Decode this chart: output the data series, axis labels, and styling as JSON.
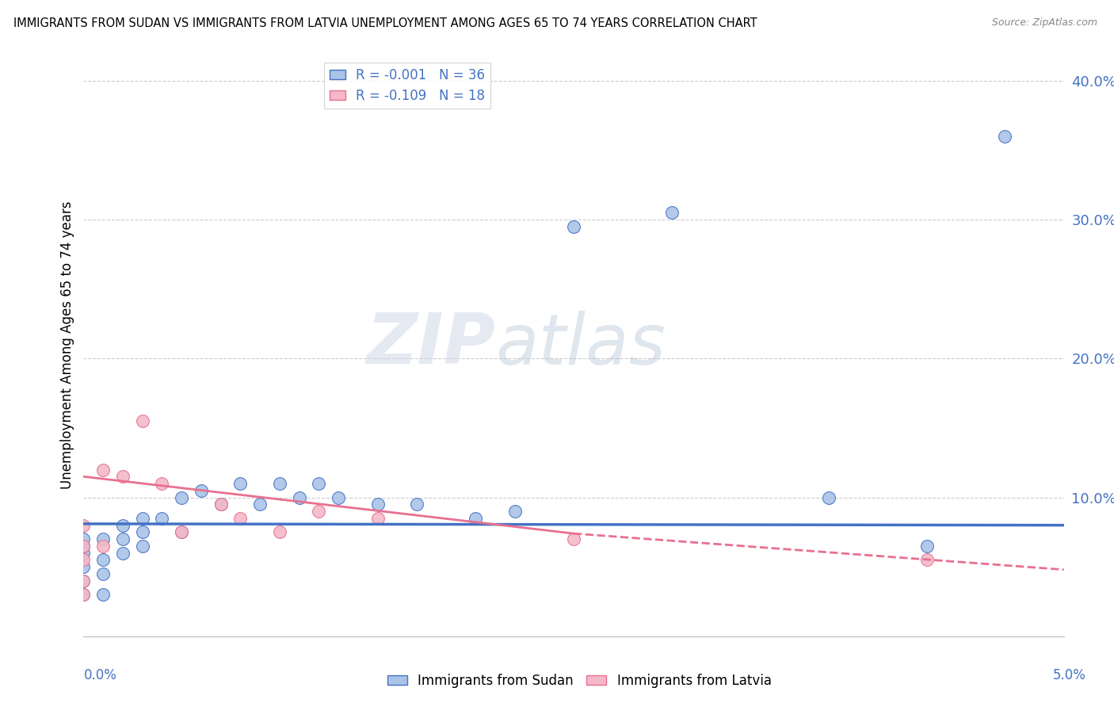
{
  "title": "IMMIGRANTS FROM SUDAN VS IMMIGRANTS FROM LATVIA UNEMPLOYMENT AMONG AGES 65 TO 74 YEARS CORRELATION CHART",
  "source": "Source: ZipAtlas.com",
  "ylabel": "Unemployment Among Ages 65 to 74 years",
  "xlim": [
    0.0,
    0.05
  ],
  "ylim": [
    0.0,
    0.42
  ],
  "ytick_vals": [
    0.0,
    0.1,
    0.2,
    0.3,
    0.4
  ],
  "ytick_labels": [
    "",
    "10.0%",
    "20.0%",
    "30.0%",
    "40.0%"
  ],
  "sudan_color": "#aac4e8",
  "latvia_color": "#f4b8c8",
  "sudan_line_color": "#4472c4",
  "latvia_line_color": "#e87090",
  "watermark_zip": "ZIP",
  "watermark_atlas": "atlas",
  "sudan_x": [
    0.0,
    0.0,
    0.0,
    0.0,
    0.0,
    0.0,
    0.001,
    0.001,
    0.001,
    0.001,
    0.002,
    0.002,
    0.002,
    0.003,
    0.003,
    0.003,
    0.004,
    0.005,
    0.005,
    0.006,
    0.007,
    0.008,
    0.009,
    0.01,
    0.011,
    0.012,
    0.013,
    0.015,
    0.017,
    0.02,
    0.022,
    0.025,
    0.03,
    0.038,
    0.043,
    0.047
  ],
  "sudan_y": [
    0.03,
    0.04,
    0.05,
    0.06,
    0.065,
    0.07,
    0.03,
    0.045,
    0.055,
    0.07,
    0.06,
    0.07,
    0.08,
    0.065,
    0.075,
    0.085,
    0.085,
    0.075,
    0.1,
    0.105,
    0.095,
    0.11,
    0.095,
    0.11,
    0.1,
    0.11,
    0.1,
    0.095,
    0.095,
    0.085,
    0.09,
    0.295,
    0.305,
    0.1,
    0.065,
    0.36
  ],
  "latvia_x": [
    0.0,
    0.0,
    0.0,
    0.0,
    0.0,
    0.001,
    0.001,
    0.002,
    0.003,
    0.004,
    0.005,
    0.007,
    0.008,
    0.01,
    0.012,
    0.015,
    0.025,
    0.043
  ],
  "latvia_y": [
    0.03,
    0.04,
    0.055,
    0.065,
    0.08,
    0.065,
    0.12,
    0.115,
    0.155,
    0.11,
    0.075,
    0.095,
    0.085,
    0.075,
    0.09,
    0.085,
    0.07,
    0.055
  ],
  "sudan_trend_x": [
    0.0,
    0.05
  ],
  "sudan_trend_y": [
    0.081,
    0.08
  ],
  "latvia_trend_x": [
    0.0,
    0.05
  ],
  "latvia_trend_y": [
    0.115,
    0.048
  ]
}
